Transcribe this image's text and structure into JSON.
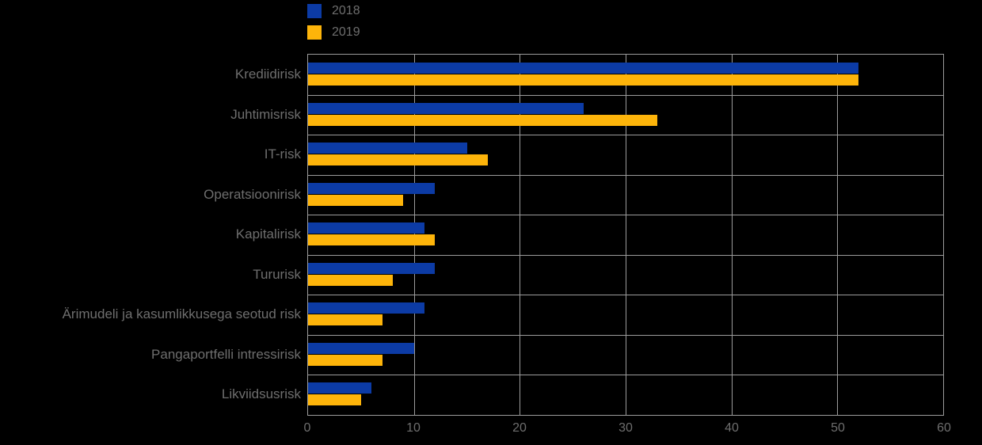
{
  "page": {
    "background": "#000000"
  },
  "chart_data": {
    "type": "bar",
    "orientation": "horizontal",
    "title": "",
    "categories": [
      "Krediidirisk",
      "Juhtimisrisk",
      "IT-risk",
      "Operatsioonirisk",
      "Kapitalirisk",
      "Tururisk",
      "Ärimudeli ja kasumlikkusega seotud risk",
      "Pangaportfelli intressirisk",
      "Likviidsusrisk"
    ],
    "series": [
      {
        "name": "2018",
        "color": "#0c3ba5",
        "values": [
          52,
          26,
          15,
          12,
          11,
          12,
          11,
          10,
          6
        ]
      },
      {
        "name": "2019",
        "color": "#fdb40a",
        "values": [
          52,
          33,
          17,
          9,
          12,
          8,
          7,
          7,
          5
        ]
      }
    ],
    "xlim": [
      0,
      60
    ],
    "x_ticks": [
      "0",
      "10",
      "20",
      "30",
      "40",
      "50",
      "60"
    ],
    "grid": true,
    "legend_position": "top-left",
    "colors": {
      "grid": "#9c9c9c",
      "text": "#6e6e6e",
      "background": "#000000"
    }
  }
}
